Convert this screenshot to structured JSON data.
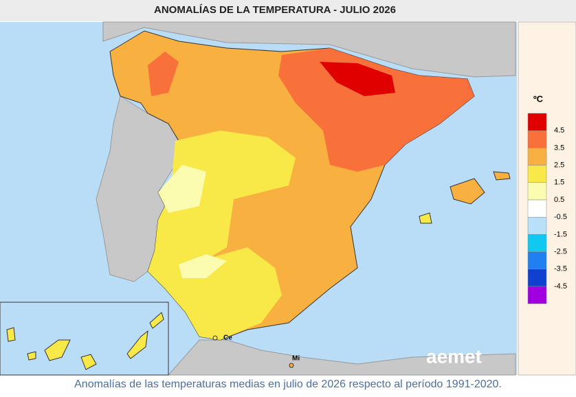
{
  "header": {
    "title": "ANOMALÍAS DE LA TEMPERATURA - JULIO 2026"
  },
  "legend": {
    "unit": "ºC",
    "colors": [
      "#e00000",
      "#f8703a",
      "#f8b040",
      "#f8e848",
      "#fcfcb0",
      "#ffffff",
      "#b8e0f8",
      "#10c8f0",
      "#2080f0",
      "#1040d0",
      "#a000e0"
    ],
    "labels": [
      "4.5",
      "3.5",
      "2.5",
      "1.5",
      "0.5",
      "-0.5",
      "-1.5",
      "-2.5",
      "-3.5",
      "-4.5"
    ]
  },
  "places": [
    "Ce",
    "Mi"
  ],
  "logo": "aemet",
  "caption": "Anomalías de las temperaturas medias en julio de 2026 respecto al período 1991-2020."
}
